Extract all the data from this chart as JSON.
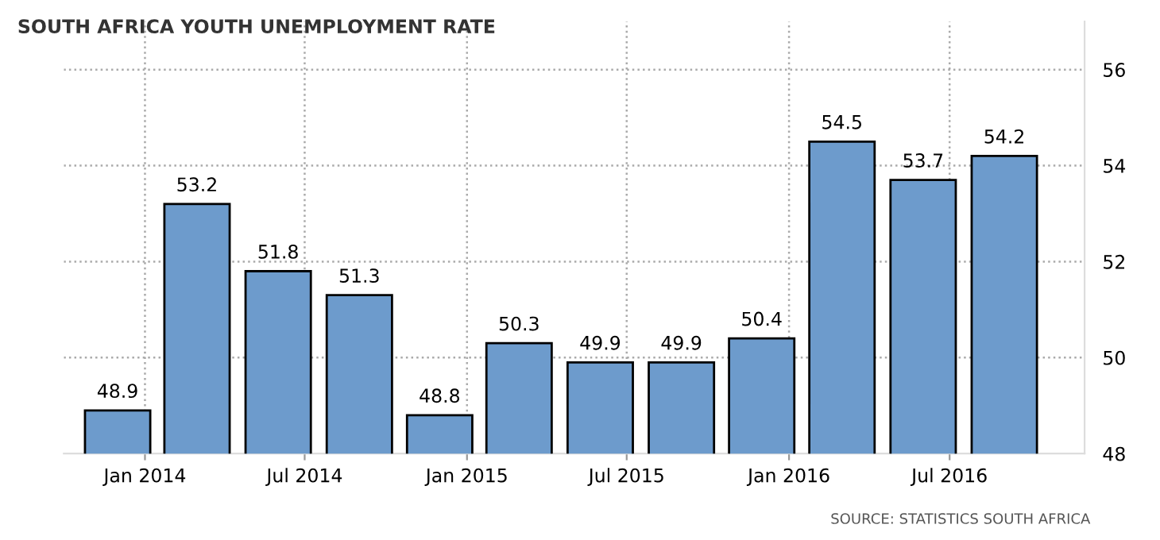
{
  "chart_data": {
    "type": "bar",
    "title": "SOUTH AFRICA YOUTH UNEMPLOYMENT RATE",
    "x": [
      "2013-12",
      "2014-03",
      "2014-06",
      "2014-09",
      "2014-12",
      "2015-03",
      "2015-06",
      "2015-09",
      "2015-12",
      "2016-03",
      "2016-06",
      "2016-09"
    ],
    "values": [
      48.9,
      53.2,
      51.8,
      51.3,
      48.8,
      50.3,
      49.9,
      49.9,
      50.4,
      54.5,
      53.7,
      54.2
    ],
    "color": "#6d9bcc",
    "xlim": [
      "2013-10",
      "2016-12"
    ],
    "xticks": [
      {
        "value": "2014-01",
        "label": "Jan 2014"
      },
      {
        "value": "2014-07",
        "label": "Jul 2014"
      },
      {
        "value": "2015-01",
        "label": "Jan 2015"
      },
      {
        "value": "2015-07",
        "label": "Jul 2015"
      },
      {
        "value": "2016-01",
        "label": "Jan 2016"
      },
      {
        "value": "2016-07",
        "label": "Jul 2016"
      }
    ],
    "ylim": [
      48,
      57
    ],
    "yticks": [
      48,
      50,
      52,
      54,
      56
    ],
    "grid": true,
    "data_labels": true,
    "annotations": [
      "SOURCE: STATISTICS SOUTH AFRICA"
    ]
  }
}
